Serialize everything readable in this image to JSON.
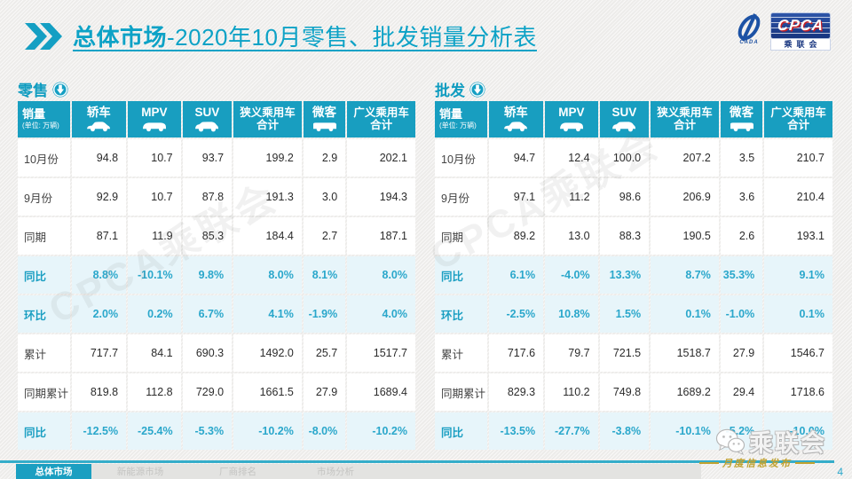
{
  "header": {
    "title_bold": "总体市场",
    "title_rest": "-2020年10月零售、批发销量分析表",
    "logo": {
      "cpca": "CPCA",
      "brand": "乘联会",
      "cada": "CADA"
    }
  },
  "columns": {
    "label_title": "销量",
    "label_sub": "(单位: 万辆)",
    "sedan": "轿车",
    "mpv": "MPV",
    "suv": "SUV",
    "narrow_line1": "狭义乘用车",
    "narrow_line2": "合计",
    "microvan": "微客",
    "broad_line1": "广义乘用车",
    "broad_line2": "合计"
  },
  "retail": {
    "section_label": "零售",
    "rows": [
      {
        "label": "10月份",
        "type": "normal",
        "values": [
          "94.8",
          "10.7",
          "93.7",
          "199.2",
          "2.9",
          "202.1"
        ]
      },
      {
        "label": "9月份",
        "type": "normal",
        "values": [
          "92.9",
          "10.7",
          "87.8",
          "191.3",
          "3.0",
          "194.3"
        ]
      },
      {
        "label": "同期",
        "type": "normal",
        "values": [
          "87.1",
          "11.9",
          "85.3",
          "184.4",
          "2.7",
          "187.1"
        ]
      },
      {
        "label": "同比",
        "type": "highlight",
        "values": [
          "8.8%",
          "-10.1%",
          "9.8%",
          "8.0%",
          "8.1%",
          "8.0%"
        ]
      },
      {
        "label": "环比",
        "type": "highlight",
        "values": [
          "2.0%",
          "0.2%",
          "6.7%",
          "4.1%",
          "-1.9%",
          "4.0%"
        ]
      },
      {
        "label": "累计",
        "type": "normal",
        "values": [
          "717.7",
          "84.1",
          "690.3",
          "1492.0",
          "25.7",
          "1517.7"
        ]
      },
      {
        "label": "同期累计",
        "type": "normal",
        "values": [
          "819.8",
          "112.8",
          "729.0",
          "1661.5",
          "27.9",
          "1689.4"
        ]
      },
      {
        "label": "同比",
        "type": "highlight",
        "values": [
          "-12.5%",
          "-25.4%",
          "-5.3%",
          "-10.2%",
          "-8.0%",
          "-10.2%"
        ]
      }
    ]
  },
  "wholesale": {
    "section_label": "批发",
    "rows": [
      {
        "label": "10月份",
        "type": "normal",
        "values": [
          "94.7",
          "12.4",
          "100.0",
          "207.2",
          "3.5",
          "210.7"
        ]
      },
      {
        "label": "9月份",
        "type": "normal",
        "values": [
          "97.1",
          "11.2",
          "98.6",
          "206.9",
          "3.6",
          "210.4"
        ]
      },
      {
        "label": "同期",
        "type": "normal",
        "values": [
          "89.2",
          "13.0",
          "88.3",
          "190.5",
          "2.6",
          "193.1"
        ]
      },
      {
        "label": "同比",
        "type": "highlight",
        "values": [
          "6.1%",
          "-4.0%",
          "13.3%",
          "8.7%",
          "35.3%",
          "9.1%"
        ]
      },
      {
        "label": "环比",
        "type": "highlight",
        "values": [
          "-2.5%",
          "10.8%",
          "1.5%",
          "0.1%",
          "-1.0%",
          "0.1%"
        ]
      },
      {
        "label": "累计",
        "type": "normal",
        "values": [
          "717.6",
          "79.7",
          "721.5",
          "1518.7",
          "27.9",
          "1546.7"
        ]
      },
      {
        "label": "同期累计",
        "type": "normal",
        "values": [
          "829.3",
          "110.2",
          "749.8",
          "1689.2",
          "29.4",
          "1718.6"
        ]
      },
      {
        "label": "同比",
        "type": "highlight",
        "values": [
          "-13.5%",
          "-27.7%",
          "-3.8%",
          "-10.1%",
          "-5.2%",
          "-10.0%"
        ]
      }
    ]
  },
  "watermark": {
    "table_text": "CPCA乘联会",
    "wechat_text": "乘联会"
  },
  "footer": {
    "tabs": [
      {
        "label": "总体市场",
        "active": true
      },
      {
        "label": "新能源市场",
        "active": false
      },
      {
        "label": "厂商排名",
        "active": false
      },
      {
        "label": "市场分析",
        "active": false
      }
    ],
    "publish_label": "月度信息发布",
    "page_number": "4"
  },
  "colors": {
    "accent_teal": "#189ec0",
    "highlight_bg": "#e7f5fa",
    "highlight_text": "#2aa7cb",
    "logo_blue": "#17357f",
    "logo_red": "#c42127",
    "gold": "#bfa12e"
  }
}
